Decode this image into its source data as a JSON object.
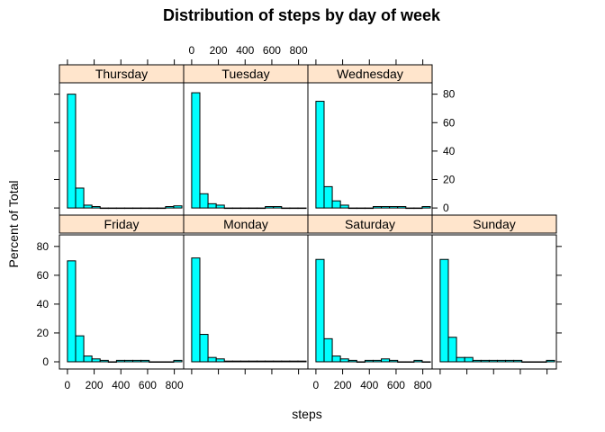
{
  "chart_data": {
    "type": "bar",
    "title": "Distribution of steps by day of week",
    "xlabel": "steps",
    "ylabel": "Percent of Total",
    "xlim": [
      -60,
      870
    ],
    "ylim": [
      -5,
      88
    ],
    "x_ticks": [
      0,
      200,
      400,
      600,
      800
    ],
    "y_ticks": [
      0,
      20,
      40,
      60,
      80
    ],
    "bin_width": 61.2,
    "bin_start": 0,
    "bar_color": "#00ffff",
    "strip_color": "#ffe5cc",
    "layout": "4 columns x 2 rows",
    "panels": [
      {
        "name": "Thursday",
        "values": [
          80.0,
          14.0,
          2.0,
          1.0,
          0,
          0,
          0,
          0,
          0,
          0,
          0,
          0,
          1.0,
          1.5
        ]
      },
      {
        "name": "Tuesday",
        "values": [
          81.0,
          10.0,
          3.0,
          2.0,
          0,
          0,
          0,
          0,
          0,
          1.0,
          1.0,
          0,
          0,
          0
        ]
      },
      {
        "name": "Wednesday",
        "values": [
          75.0,
          15.0,
          5.0,
          2.0,
          0,
          0,
          0,
          1.0,
          1.0,
          1.0,
          1.0,
          0,
          0,
          1.0
        ]
      },
      {
        "name": "Friday",
        "values": [
          70.0,
          18.0,
          4.0,
          2.0,
          1.0,
          0,
          1.0,
          1.0,
          1.0,
          1.0,
          0,
          0,
          0,
          1.0
        ]
      },
      {
        "name": "Monday",
        "values": [
          72.0,
          19.0,
          3.0,
          2.0,
          0.5,
          0.5,
          0.5,
          0.5,
          0.5,
          0.5,
          0.5,
          0.5,
          0.5,
          0.5
        ]
      },
      {
        "name": "Saturday",
        "values": [
          71.0,
          16.0,
          4.0,
          2.0,
          1.0,
          0,
          1.0,
          1.0,
          2.0,
          1.0,
          0,
          0,
          1.0,
          0
        ]
      },
      {
        "name": "Sunday",
        "values": [
          71.0,
          17.0,
          3.0,
          3.0,
          1.0,
          1.0,
          1.0,
          1.0,
          1.0,
          1.0,
          0,
          0,
          0,
          1.0
        ]
      }
    ]
  }
}
